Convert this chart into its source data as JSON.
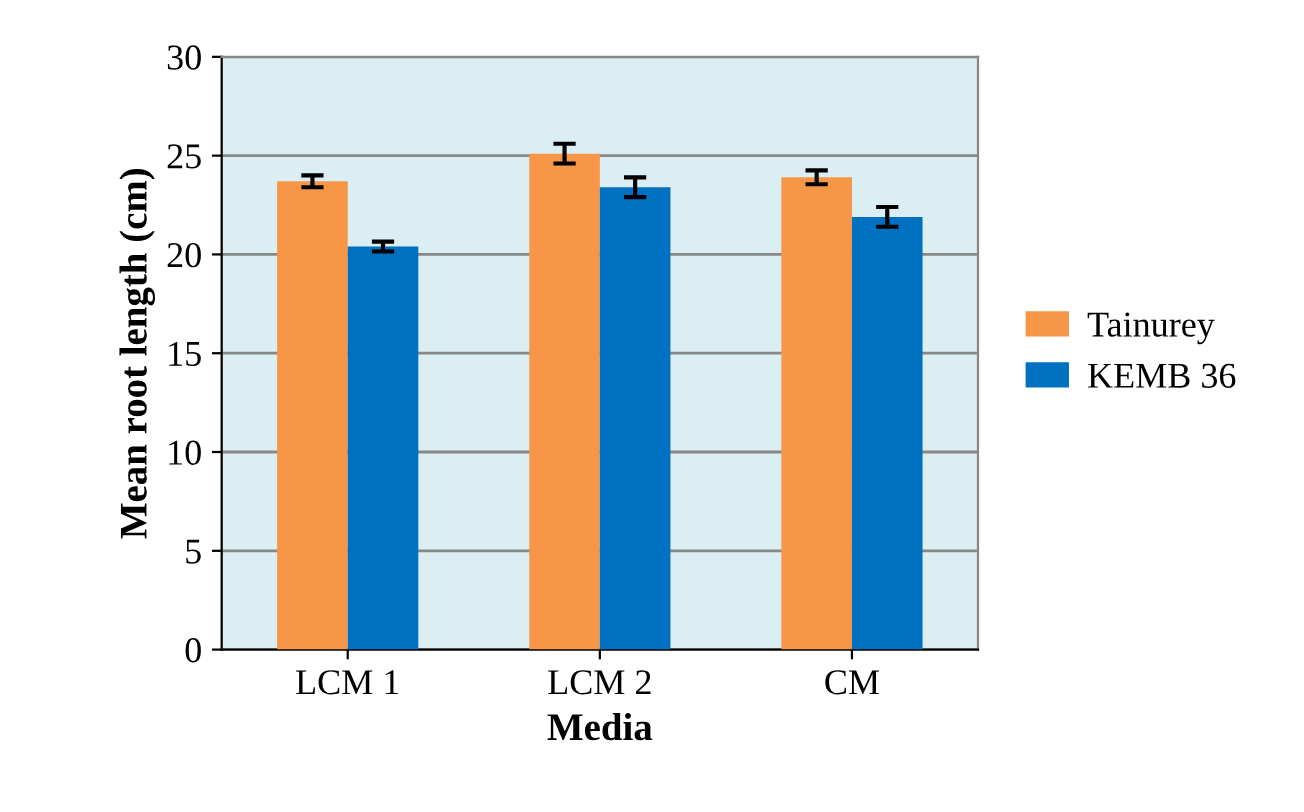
{
  "chart_data": {
    "type": "bar",
    "xlabel": "Media",
    "ylabel": "Mean root length (cm)",
    "categories": [
      "LCM 1",
      "LCM 2",
      "CM"
    ],
    "series": [
      {
        "name": "Tainurey",
        "color": "#f79646",
        "values": [
          23.7,
          25.1,
          23.9
        ],
        "errors": [
          0.3,
          0.5,
          0.35
        ]
      },
      {
        "name": "KEMB 36",
        "color": "#0070c0",
        "values": [
          20.4,
          23.4,
          21.9
        ],
        "errors": [
          0.25,
          0.5,
          0.5
        ]
      }
    ],
    "ylim": [
      0,
      30
    ],
    "yticks": [
      0,
      5,
      10,
      15,
      20,
      25,
      30
    ],
    "grid": "y",
    "legend": "right"
  }
}
